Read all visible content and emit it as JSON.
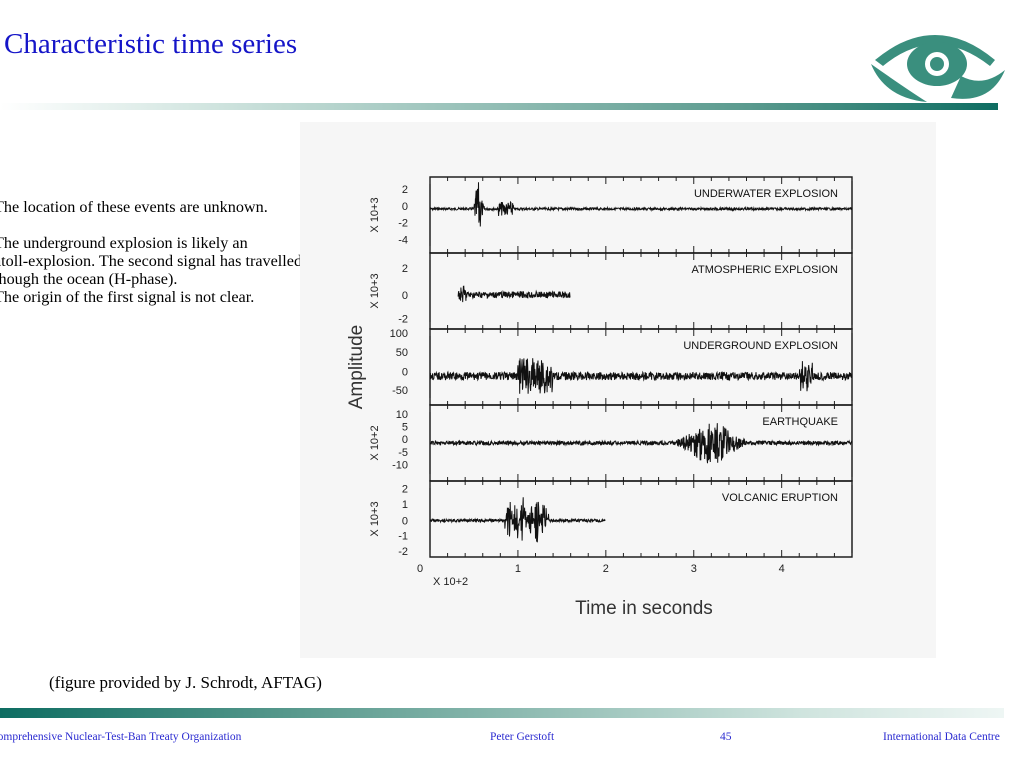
{
  "slide": {
    "title": "Characteristic time series",
    "bullets": [
      {
        "lines": [
          "The location of these events are unknown."
        ]
      },
      {
        "lines": [
          "The underground explosion is likely an",
          "atoll-explosion. The second signal has travelled",
          "though the ocean (H-phase).",
          "The origin of the first signal is not clear."
        ]
      }
    ],
    "caption": "(figure provided by J. Schrodt, AFTAG)"
  },
  "footer": {
    "organization": "Comprehensive Nuclear-Test-Ban Treaty  Organization",
    "author": "Peter Gerstoft",
    "page": "45",
    "center": "International Data Centre"
  },
  "colors": {
    "title": "#1515c8",
    "footer_text": "#2a2ad0",
    "rule_dark": "#0e6d62",
    "logo": "#3a8f7e"
  },
  "figure": {
    "ylabel": "Amplitude",
    "xlabel": "Time  in  seconds",
    "x_multiplier": "X 10+2",
    "x_ticks": [
      "0",
      "1",
      "2",
      "3",
      "4"
    ],
    "panels": [
      {
        "name": "UNDERWATER EXPLOSION",
        "multiplier": "X 10+3",
        "ticks": [
          "2",
          "0",
          "-2",
          "-4"
        ]
      },
      {
        "name": "ATMOSPHERIC EXPLOSION",
        "multiplier": "X 10+3",
        "ticks": [
          "2",
          "0",
          "-2"
        ]
      },
      {
        "name": "UNDERGROUND EXPLOSION",
        "multiplier": "",
        "ticks": [
          "100",
          "50",
          "0",
          "-50"
        ]
      },
      {
        "name": "EARTHQUAKE",
        "multiplier": "X 10+2",
        "ticks": [
          "10",
          "5",
          "0",
          "-5",
          "-10"
        ]
      },
      {
        "name": "VOLCANIC ERUPTION",
        "multiplier": "X 10+3",
        "ticks": [
          "2",
          "1",
          "0",
          "-1",
          "-2"
        ]
      }
    ]
  }
}
